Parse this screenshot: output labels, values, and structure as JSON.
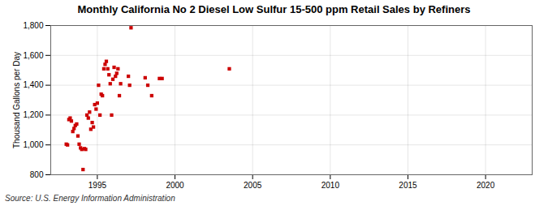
{
  "chart_data": {
    "type": "scatter",
    "title": "Monthly California No 2 Diesel Low Sulfur 15-500 ppm Retail Sales by Refiners",
    "ylabel": "Thousand Gallons per Day",
    "source": "Source: U.S. Energy Information Administration",
    "color": "#cc0000",
    "marker": "square",
    "grid": true,
    "xlim": [
      1992,
      2023
    ],
    "ylim": [
      800,
      1800
    ],
    "xticks": [
      1995,
      2000,
      2005,
      2010,
      2015,
      2020
    ],
    "yticks": [
      800,
      {
        "value": 1000,
        "label": "1,000"
      },
      {
        "value": 1200,
        "label": "1,200"
      },
      {
        "value": 1400,
        "label": "1,400"
      },
      {
        "value": 1600,
        "label": "1,600"
      },
      {
        "value": 1800,
        "label": "1,800"
      }
    ],
    "x": [
      1993.0,
      1993.08,
      1993.17,
      1993.25,
      1993.33,
      1993.42,
      1993.5,
      1993.58,
      1993.67,
      1993.75,
      1993.83,
      1993.92,
      1994.0,
      1994.08,
      1994.17,
      1994.25,
      1994.33,
      1994.42,
      1994.5,
      1994.58,
      1994.67,
      1994.75,
      1994.83,
      1994.92,
      1995.0,
      1995.08,
      1995.17,
      1995.25,
      1995.33,
      1995.42,
      1995.5,
      1995.58,
      1995.67,
      1995.75,
      1995.83,
      1995.92,
      1996.0,
      1996.08,
      1996.17,
      1996.25,
      1996.33,
      1996.42,
      1996.5,
      1997.0,
      1997.08,
      1997.17,
      1998.08,
      1998.25,
      1998.5,
      1999.0,
      1999.17,
      2003.5
    ],
    "values": [
      1005,
      1000,
      1170,
      1180,
      1160,
      1090,
      1110,
      1130,
      1140,
      1060,
      1005,
      980,
      970,
      835,
      975,
      970,
      1200,
      1180,
      1220,
      1105,
      1150,
      1120,
      1270,
      1240,
      1280,
      1400,
      1200,
      1340,
      1330,
      1510,
      1540,
      1560,
      1510,
      1470,
      1410,
      1200,
      1440,
      1520,
      1460,
      1480,
      1510,
      1330,
      1410,
      1460,
      1400,
      1785,
      1450,
      1400,
      1330,
      1445,
      1445,
      1510
    ]
  }
}
